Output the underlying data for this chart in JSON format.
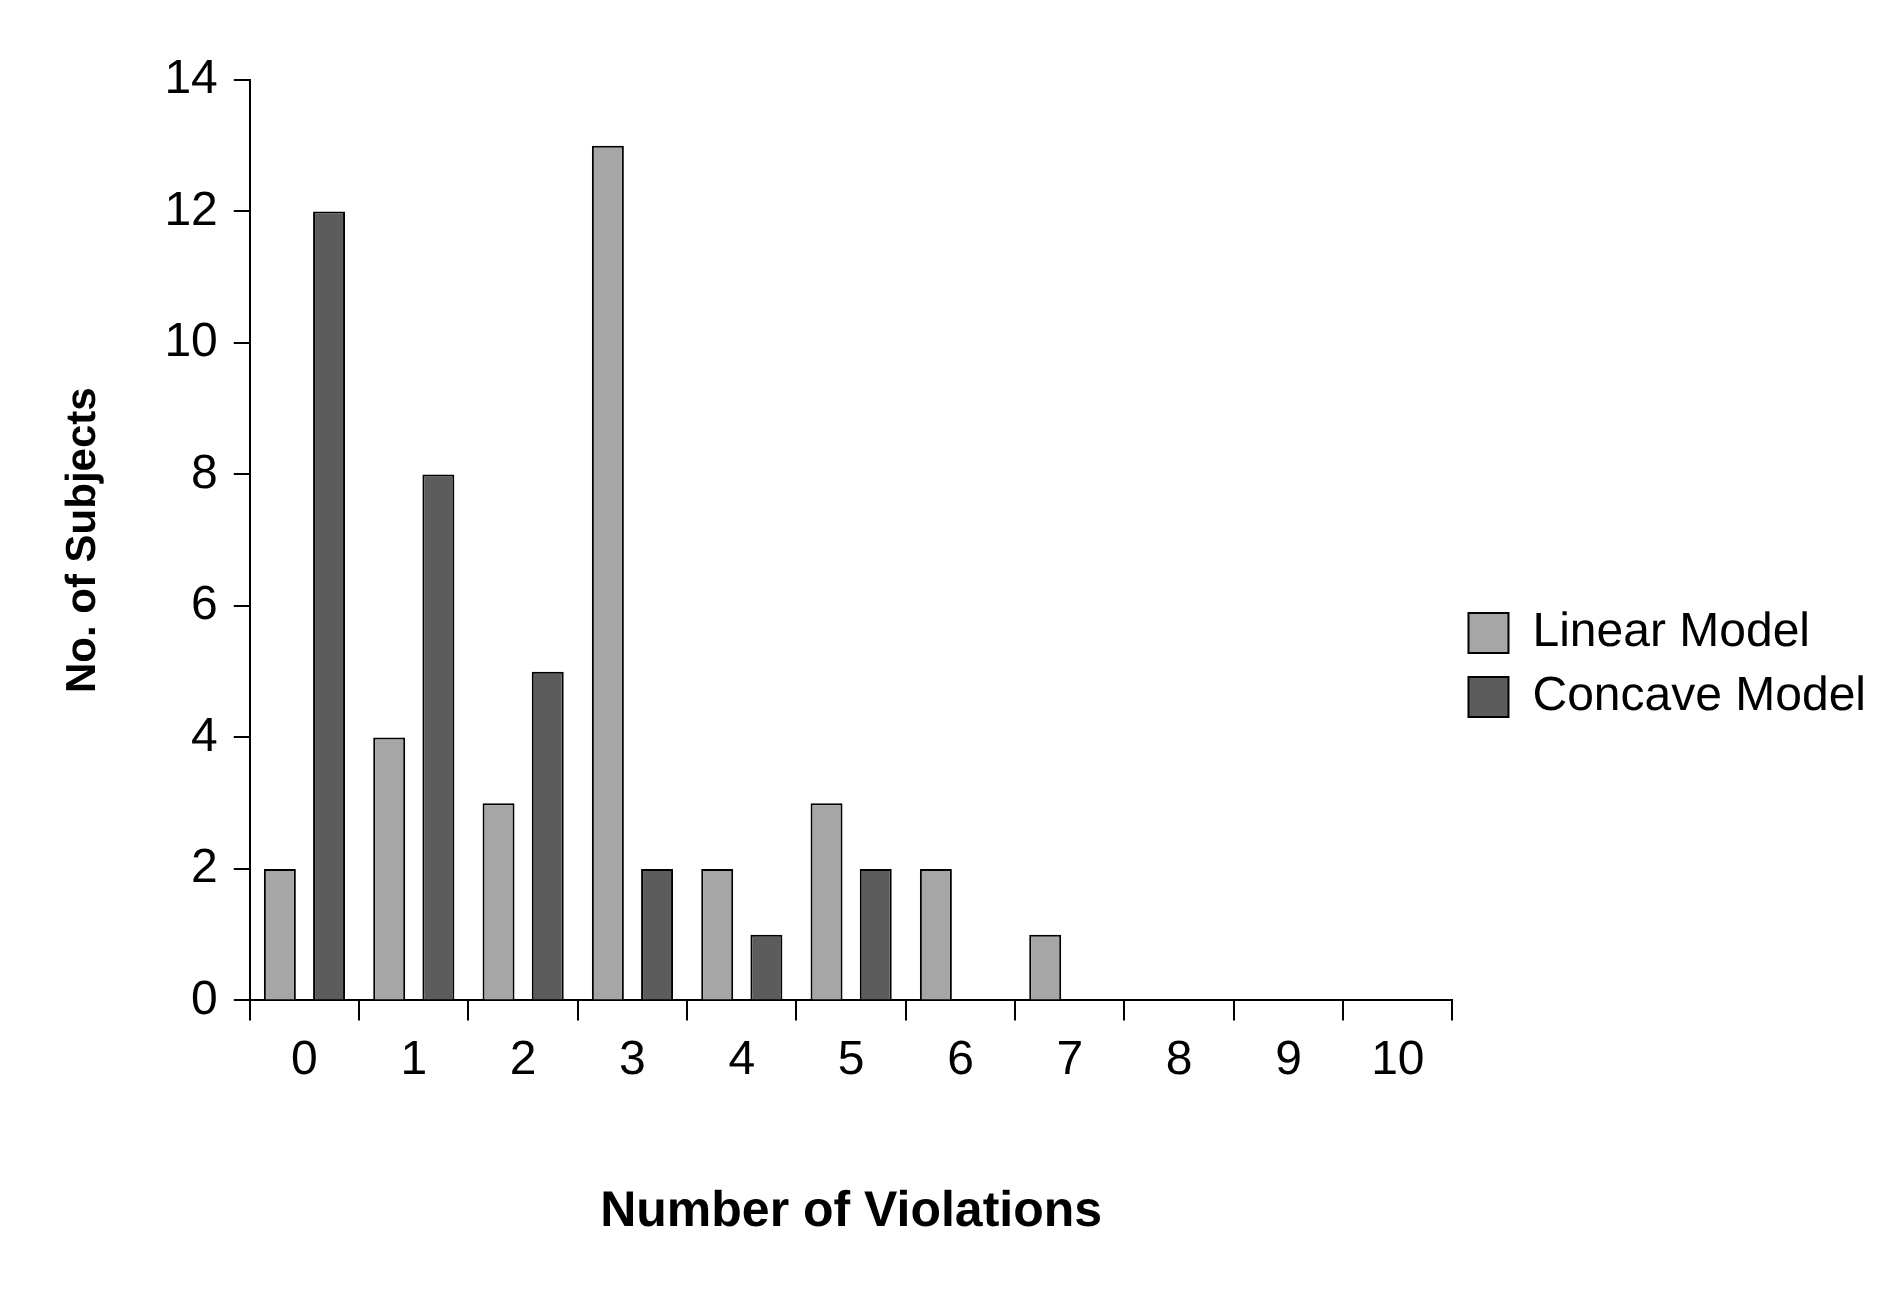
{
  "chart_data": {
    "type": "bar",
    "xlabel": "Number of Violations",
    "ylabel": "No. of Subjects",
    "categories": [
      "0",
      "1",
      "2",
      "3",
      "4",
      "5",
      "6",
      "7",
      "8",
      "9",
      "10"
    ],
    "series": [
      {
        "name": "Linear Model",
        "color": "#a6a6a6",
        "values": [
          2,
          4,
          3,
          13,
          2,
          3,
          2,
          1,
          0,
          0,
          0
        ]
      },
      {
        "name": "Concave Model",
        "color": "#5c5c5c",
        "values": [
          12,
          8,
          5,
          2,
          1,
          2,
          0,
          0,
          0,
          0,
          0
        ]
      }
    ],
    "ylim": [
      0,
      14
    ],
    "yticks": [
      0,
      2,
      4,
      6,
      8,
      10,
      12,
      14
    ],
    "grid": false,
    "legend": "right"
  }
}
